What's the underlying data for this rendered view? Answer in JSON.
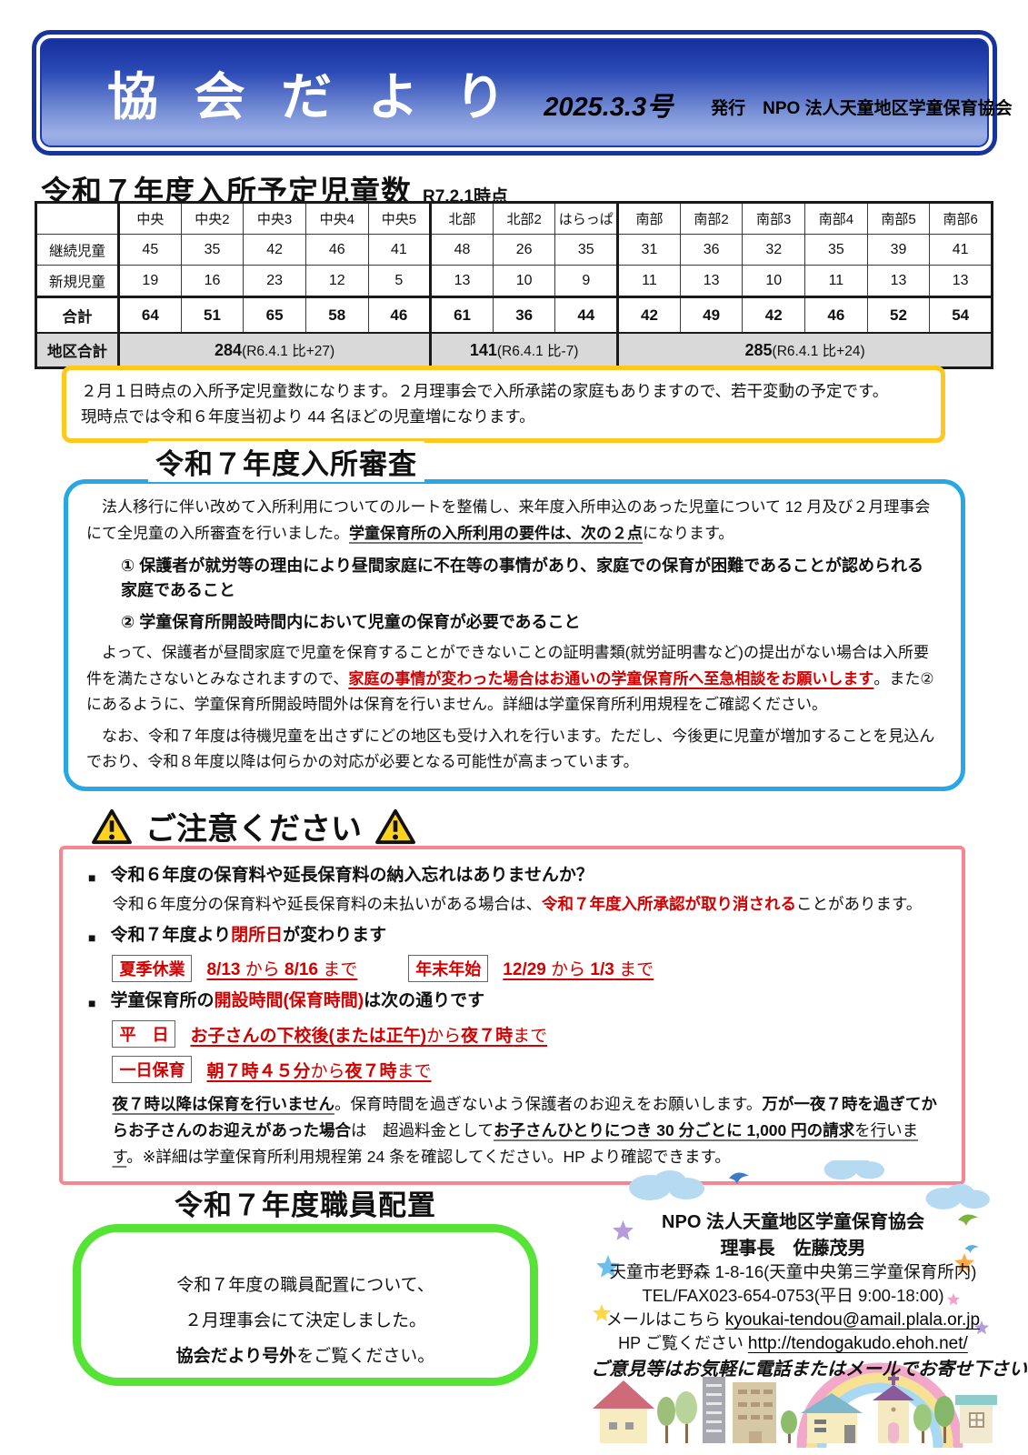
{
  "banner": {
    "title": "協 会 だ よ り",
    "issue": "2025.3.3号",
    "publisher": "発行　NPO 法人天童地区学童保育協会"
  },
  "enrollment": {
    "title": "令和７年度入所予定児童数",
    "as_of": "R7.2.1時点",
    "table": {
      "columns": [
        "中央",
        "中央2",
        "中央3",
        "中央4",
        "中央5",
        "北部",
        "北部2",
        "はらっぱ",
        "南部",
        "南部2",
        "南部3",
        "南部4",
        "南部5",
        "南部6"
      ],
      "rows": [
        {
          "label": "継続児童",
          "values": [
            45,
            35,
            42,
            46,
            41,
            48,
            26,
            35,
            31,
            36,
            32,
            35,
            39,
            41
          ]
        },
        {
          "label": "新規児童",
          "values": [
            19,
            16,
            23,
            12,
            5,
            13,
            10,
            9,
            11,
            13,
            10,
            11,
            13,
            13
          ]
        },
        {
          "label": "合計",
          "values": [
            64,
            51,
            65,
            58,
            46,
            61,
            36,
            44,
            42,
            49,
            42,
            46,
            52,
            54
          ]
        }
      ],
      "district_row": {
        "label": "地区合計",
        "groups": [
          {
            "num": "284",
            "rest": "(R6.4.1 比+27)",
            "span": 5
          },
          {
            "num": "141",
            "rest": "(R6.4.1 比-7)",
            "span": 3
          },
          {
            "num": "285",
            "rest": "(R6.4.1 比+24)",
            "span": 6
          }
        ]
      }
    },
    "note_line1": "２月１日時点の入所予定児童数になります。２月理事会で入所承諾の家庭もありますので、若干変動の予定です。",
    "note_line2": "現時点では令和６年度当初より 44 名ほどの児童増になります。"
  },
  "screening": {
    "title": "令和７年度入所審査",
    "p1": [
      {
        "t": "　法人移行に伴い改めて入所利用についてのルートを整備し、来年度入所申込のあった児童について 12 月及び２月理事会にて全児童の入所審査を行いました。",
        "c": ""
      },
      {
        "t": "学童保育所の入所利用の要件は、次の２点",
        "c": "b ub"
      },
      {
        "t": "になります。",
        "c": ""
      }
    ],
    "item1": [
      {
        "t": "① 保護者が就労等の理由により昼間家庭に不在等の事情があり、家庭での保育が困難であることが認められる家庭であること",
        "c": "b"
      }
    ],
    "item2": [
      {
        "t": "② 学童保育所開設時間内において児童の保育が必要であること",
        "c": "b"
      }
    ],
    "p2": [
      {
        "t": "　よって、保護者が昼間家庭で児童を保育することができないことの証明書類(就労証明書など)の提出がない場合は入所要件を満たさないとみなされますので、",
        "c": ""
      },
      {
        "t": "家庭の事情が変わった場合はお通いの学童保育所へ至急相談をお願いします",
        "c": "b r u"
      },
      {
        "t": "。また②にあるように、学童保育所開設時間外は保育を行いません。詳細は学童保育所利用規程をご確認ください。",
        "c": ""
      }
    ],
    "p3": [
      {
        "t": "　なお、令和７年度は待機児童を出さずにどの地区も受け入れを行います。ただし、今後更に児童が増加することを見込んでおり、令和８年度以降は何らかの対応が必要となる可能性が高まっています。",
        "c": ""
      }
    ]
  },
  "caution": {
    "title": "ご注意ください",
    "items": [
      {
        "heading": [
          {
            "t": "令和６年度の保育料や延長保育料の納入忘れはありませんか？",
            "c": "b"
          }
        ],
        "body": [
          {
            "t": "令和６年度分の保育料や延長保育料の未払いがある場合は、",
            "c": ""
          },
          {
            "t": "令和７年度入所承認が取り消される",
            "c": "b r"
          },
          {
            "t": "ことがあります。",
            "c": ""
          }
        ]
      },
      {
        "heading": [
          {
            "t": "令和７年度より",
            "c": "b"
          },
          {
            "t": "閉所日",
            "c": "b r"
          },
          {
            "t": "が変わります",
            "c": "b"
          }
        ],
        "schedules": [
          {
            "label": "夏季休業",
            "segments": [
              {
                "t": "8/13",
                "c": "b r u"
              },
              {
                "t": " から ",
                "c": "r u"
              },
              {
                "t": "8/16",
                "c": "b r u"
              },
              {
                "t": " まで",
                "c": "r u"
              }
            ]
          },
          {
            "label": "年末年始",
            "segments": [
              {
                "t": "12/29",
                "c": "b r u"
              },
              {
                "t": " から ",
                "c": "r u"
              },
              {
                "t": "1/3",
                "c": "b r u"
              },
              {
                "t": " まで",
                "c": "r u"
              }
            ]
          }
        ]
      },
      {
        "heading": [
          {
            "t": "学童保育所の",
            "c": "b"
          },
          {
            "t": "開設時間(保育時間)",
            "c": "b r"
          },
          {
            "t": "は次の通りです",
            "c": "b"
          }
        ],
        "schedules": [
          {
            "label": "平　日",
            "segments": [
              {
                "t": "お子さんの下校後(または正午)",
                "c": "b r u"
              },
              {
                "t": "から",
                "c": "r u"
              },
              {
                "t": "夜７時",
                "c": "b r u"
              },
              {
                "t": "まで",
                "c": "r u"
              }
            ]
          },
          {
            "label": "一日保育",
            "segments": [
              {
                "t": "朝７時４５分",
                "c": "b r u"
              },
              {
                "t": "から",
                "c": "r u"
              },
              {
                "t": "夜７時",
                "c": "b r u"
              },
              {
                "t": "まで",
                "c": "r u"
              }
            ]
          }
        ],
        "note": [
          {
            "t": "夜７時以降は保育を行いません",
            "c": "b ub"
          },
          {
            "t": "。保育時間を過ぎないよう保護者のお迎えをお願いします。",
            "c": ""
          },
          {
            "t": "万が一夜７時を過ぎてからお子さんのお迎えがあった場合",
            "c": "b"
          },
          {
            "t": "は　超過料金として",
            "c": ""
          },
          {
            "t": "お子さんひとりにつき 30 分ごとに 1,000 円の請求",
            "c": "b ub"
          },
          {
            "t": "を行います",
            "c": "ub"
          },
          {
            "t": "。※詳細は学童保育所利用規程第 24 条を確認してください。HP より確認できます。",
            "c": ""
          }
        ]
      }
    ]
  },
  "staffing": {
    "title": "令和７年度職員配置",
    "line1": "令和７年度の職員配置について、",
    "line2": "２月理事会にて決定しました。",
    "line3": [
      {
        "t": "協会だより号外",
        "c": "b"
      },
      {
        "t": "をご覧ください。",
        "c": ""
      }
    ]
  },
  "contact": {
    "org": "NPO 法人天童地区学童保育協会",
    "chair": "理事長　佐藤茂男",
    "address": "天童市老野森 1-8-16(天童中央第三学童保育所内)",
    "tel": "TEL/FAX023-654-0753(平日 9:00-18:00)",
    "mail_label": "メールはこちら",
    "mail": "kyoukai-tendou@amail.plala.or.jp",
    "hp_label": "HP ご覧ください",
    "hp": "http://tendogakudo.ehoh.net/",
    "feedback": "ご意見等はお気軽に電話またはメールでお寄せ下さい"
  },
  "colors": {
    "banner_border": "#16339e",
    "note_border": "#ffc81e",
    "screening_border": "#27a7e3",
    "caution_border": "#f8858f",
    "staffing_border": "#55e435",
    "alert_red": "#d40000",
    "district_row_bg": "#d9d9d9"
  },
  "icons": {
    "warning": "warning-triangle",
    "decorations": [
      "cloud",
      "bird",
      "star",
      "rainbow",
      "house",
      "tree",
      "building",
      "church"
    ]
  }
}
